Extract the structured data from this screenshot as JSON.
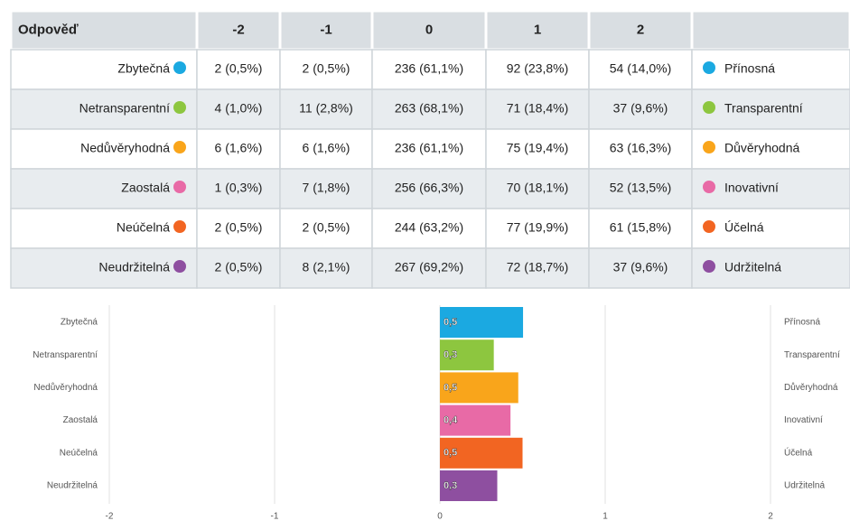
{
  "table": {
    "header": [
      "Odpověď",
      "-2",
      "-1",
      "0",
      "1",
      "2"
    ],
    "rows": [
      {
        "label": "Zbytečná",
        "color": "#1ba9e1",
        "cells": [
          "2 (0,5%)",
          "2 (0,5%)",
          "236 (61,1%)",
          "92 (23,8%)",
          "54 (14,0%)"
        ],
        "right": "Přínosná"
      },
      {
        "label": "Netransparentní",
        "color": "#8dc63f",
        "cells": [
          "4 (1,0%)",
          "11 (2,8%)",
          "263 (68,1%)",
          "71 (18,4%)",
          "37 (9,6%)"
        ],
        "right": "Transparentní"
      },
      {
        "label": "Nedůvěryhodná",
        "color": "#f9a51b",
        "cells": [
          "6 (1,6%)",
          "6 (1,6%)",
          "236 (61,1%)",
          "75 (19,4%)",
          "63 (16,3%)"
        ],
        "right": "Důvěryhodná"
      },
      {
        "label": "Zaostalá",
        "color": "#e86aa6",
        "cells": [
          "1 (0,3%)",
          "7 (1,8%)",
          "256 (66,3%)",
          "70 (18,1%)",
          "52 (13,5%)"
        ],
        "right": "Inovativní"
      },
      {
        "label": "Neúčelná",
        "color": "#f26522",
        "cells": [
          "2 (0,5%)",
          "2 (0,5%)",
          "244 (63,2%)",
          "77 (19,9%)",
          "61 (15,8%)"
        ],
        "right": "Účelná"
      },
      {
        "label": "Neudržitelná",
        "color": "#8e4fa0",
        "cells": [
          "2 (0,5%)",
          "8 (2,1%)",
          "267 (69,2%)",
          "72 (18,7%)",
          "37 (9,6%)"
        ],
        "right": "Udržitelná"
      }
    ]
  },
  "chart_data": {
    "type": "bar",
    "orientation": "horizontal",
    "categories": [
      "Zbytečná",
      "Netransparentní",
      "Nedůvěryhodná",
      "Zaostalá",
      "Neúčelná",
      "Neudržitelná"
    ],
    "right_labels": [
      "Přínosná",
      "Transparentní",
      "Důvěryhodná",
      "Inovativní",
      "Účelná",
      "Udržitelná"
    ],
    "values": [
      0.503,
      0.326,
      0.474,
      0.427,
      0.5,
      0.347
    ],
    "value_labels": [
      "0,5",
      "0,3",
      "0,5",
      "0,4",
      "0,5",
      "0,3"
    ],
    "colors": [
      "#1ba9e1",
      "#8dc63f",
      "#f9a51b",
      "#e86aa6",
      "#f26522",
      "#8e4fa0"
    ],
    "xlim": [
      -2,
      2
    ],
    "xticks": [
      -2,
      -1,
      0,
      1,
      2
    ],
    "grid": true
  }
}
